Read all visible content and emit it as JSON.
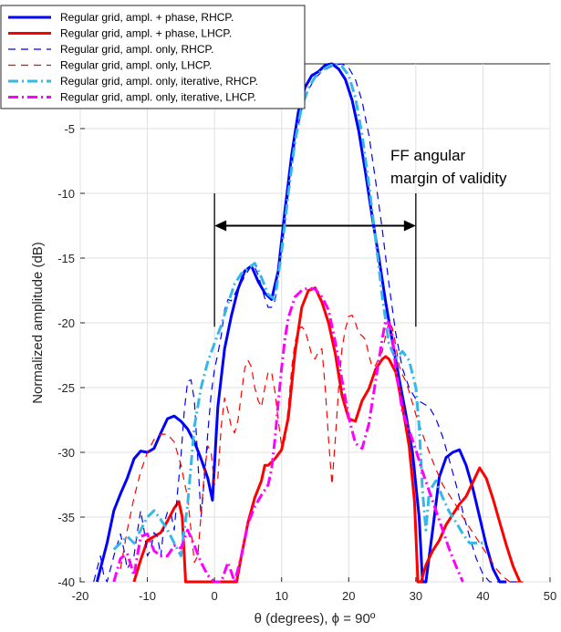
{
  "chart_data": {
    "type": "line",
    "xlabel": "θ (degrees), ϕ = 90º",
    "ylabel": "Normalized amplitude (dB)",
    "xlim": [
      -20,
      50
    ],
    "ylim": [
      -40,
      0
    ],
    "xticks": [
      -20,
      -10,
      0,
      10,
      20,
      30,
      40,
      50
    ],
    "yticks": [
      -5,
      -10,
      -15,
      -20,
      -25,
      -30,
      -35,
      -40
    ],
    "grid": true,
    "legend_position": "top-left",
    "annotation": {
      "text_line1": "FF angular",
      "text_line2": "margin of validity",
      "x_range": [
        0,
        30
      ],
      "arrow_y": -12.5,
      "bracket_y_range": [
        -10,
        -20.3
      ]
    },
    "series": [
      {
        "name": "Regular grid, ampl. + phase, RHCP.",
        "color": "#0000ff",
        "style": "solid",
        "width": 3,
        "x": [
          -17.5,
          -16,
          -15,
          -14,
          -13,
          -12,
          -11,
          -10,
          -9,
          -8,
          -7,
          -6,
          -5,
          -4,
          -3,
          -2,
          -1,
          -0.3,
          0.5,
          1.5,
          2.5,
          3.5,
          4.5,
          5.5,
          6.5,
          7.5,
          8.5,
          9.5,
          10.5,
          11.5,
          12.5,
          13.5,
          14.5,
          15.5,
          16.5,
          17.5,
          18.5,
          19.5,
          20.5,
          21.5,
          22.5,
          23.5,
          24.5,
          25.5,
          26.5,
          27.5,
          28.5,
          29.5,
          30.5,
          31,
          31.5,
          32.5,
          33.5,
          34.5,
          35.5,
          36.5,
          37.5,
          38.5,
          39.5,
          40.5,
          41.5,
          42.5,
          43,
          43.5
        ],
        "y": [
          -40,
          -37,
          -34.5,
          -33.2,
          -32,
          -30.5,
          -29.9,
          -30,
          -29.7,
          -28.5,
          -27.4,
          -27.2,
          -27.6,
          -28.2,
          -29.2,
          -30.5,
          -32,
          -33.7,
          -26.5,
          -22,
          -19.5,
          -17.4,
          -16,
          -15.6,
          -16.8,
          -17.7,
          -18.2,
          -16,
          -11.3,
          -7,
          -3.7,
          -1.8,
          -0.9,
          -0.6,
          -0.1,
          0,
          -0.4,
          -1.2,
          -2.8,
          -5.2,
          -8.4,
          -11.8,
          -15,
          -18.4,
          -21.4,
          -24.3,
          -27,
          -30,
          -35,
          -40,
          -40,
          -36,
          -31.9,
          -30.4,
          -30,
          -29.8,
          -31,
          -32.8,
          -35,
          -37.2,
          -39,
          -40,
          -40,
          -40
        ]
      },
      {
        "name": "Regular grid, ampl. + phase, LHCP.",
        "color": "#ff0000",
        "style": "solid",
        "width": 3,
        "x": [
          -12,
          -11,
          -10,
          -9,
          -8,
          -7,
          -6,
          -5.3,
          -4.8,
          -4.3,
          3.3,
          4,
          5,
          6,
          7,
          7.5,
          8,
          9,
          10,
          11,
          12,
          13,
          14,
          15,
          16,
          17,
          18,
          19,
          20,
          21,
          22,
          23,
          24,
          25,
          25.5,
          26,
          27,
          28,
          29,
          29.8,
          30.3,
          30.8,
          31.5,
          32.5,
          33.5,
          34.5,
          35.5,
          36.5,
          37.5,
          38.5,
          39.5,
          40.5,
          41.5,
          42.5,
          43.5,
          44.5,
          45.5
        ],
        "y": [
          -40,
          -38.3,
          -36.8,
          -36.5,
          -36.2,
          -35.3,
          -34.3,
          -33.8,
          -35,
          -40,
          -40,
          -38,
          -35.4,
          -33.5,
          -32.2,
          -31,
          -31,
          -30.5,
          -29.8,
          -27.3,
          -22.3,
          -18.8,
          -17.5,
          -17.3,
          -18.4,
          -20,
          -22.4,
          -25.6,
          -27.4,
          -27.6,
          -26,
          -25.1,
          -23.6,
          -22.8,
          -22.6,
          -22.8,
          -23.8,
          -26.4,
          -29.5,
          -33.8,
          -40,
          -40,
          -38.7,
          -37.6,
          -36.8,
          -35.6,
          -34.8,
          -34,
          -33.4,
          -32.3,
          -31.2,
          -32,
          -33.6,
          -35.4,
          -37.2,
          -38.8,
          -40
        ]
      },
      {
        "name": "Regular grid, ampl. only, RHCP.",
        "color": "#0000ff",
        "style": "dashed",
        "width": 1.2,
        "x": [
          -18,
          -17.5,
          -17,
          -16.5,
          -16,
          -15,
          -14,
          -13.5,
          -13,
          -12,
          -11.5,
          -11,
          -10.5,
          -10,
          -9.5,
          -9,
          -8.5,
          -8,
          -7.5,
          -7,
          -6.5,
          -6,
          -5.5,
          -5,
          -4.5,
          -4,
          -3.5,
          -3,
          -2.5,
          -2,
          -1.5,
          -1,
          -0.5,
          0,
          0.5,
          1,
          1.5,
          2,
          2.5,
          3,
          3.5,
          4,
          4.5,
          5,
          5.5,
          6,
          6.5,
          7,
          7.5,
          8,
          8.5,
          9,
          10,
          11,
          12,
          13,
          14,
          15,
          16,
          17,
          18,
          19,
          20,
          21,
          22,
          23,
          24,
          25,
          26,
          27,
          28,
          29,
          30,
          31,
          32,
          33,
          34,
          35,
          36,
          37,
          38,
          39,
          40,
          41,
          42,
          43,
          44,
          45
        ],
        "y": [
          -40,
          -39,
          -38,
          -39.5,
          -40,
          -38,
          -36.3,
          -37.5,
          -39,
          -38,
          -36.2,
          -34.5,
          -36,
          -38,
          -37.5,
          -36.2,
          -36.5,
          -38,
          -35.5,
          -34.6,
          -34.7,
          -36,
          -33,
          -30.3,
          -26.8,
          -24.5,
          -24.4,
          -26,
          -30.5,
          -35,
          -32,
          -28.5,
          -25.5,
          -23.6,
          -22.4,
          -21,
          -19,
          -18.2,
          -18.3,
          -17.8,
          -17.3,
          -16.9,
          -16.4,
          -16,
          -15.6,
          -15.7,
          -16.3,
          -17.2,
          -18.1,
          -18.8,
          -18.8,
          -18.3,
          -14.5,
          -10,
          -6,
          -3.5,
          -2,
          -1.1,
          -0.6,
          -0.3,
          -0.1,
          0,
          -0.3,
          -1.2,
          -2.9,
          -5.5,
          -9,
          -12.8,
          -17,
          -20.8,
          -23.5,
          -25,
          -25.9,
          -26.2,
          -26.5,
          -27.4,
          -28.8,
          -30.6,
          -32.5,
          -34.6,
          -36.5,
          -38.2,
          -39.4,
          -40,
          -40,
          -40,
          -40,
          -40
        ]
      },
      {
        "name": "Regular grid, ampl. only, LHCP.",
        "color": "#ff0000",
        "style": "dashed",
        "width": 1.2,
        "x": [
          -14,
          -13,
          -12,
          -11,
          -10,
          -9,
          -8,
          -7,
          -6,
          -5,
          -4,
          -3.5,
          -3,
          -2.5,
          -2,
          -1.5,
          -1,
          -0.5,
          0,
          0.5,
          1,
          1.5,
          2,
          2.5,
          3,
          3.5,
          4,
          4.5,
          5,
          5.5,
          6,
          6.5,
          7,
          7.5,
          8,
          8.5,
          9,
          9.5,
          10,
          10.5,
          11,
          11.5,
          12,
          12.5,
          13,
          13.5,
          14,
          14.5,
          15,
          15.5,
          16,
          16.5,
          17,
          17.5,
          18,
          18.5,
          19,
          19.5,
          20,
          20.5,
          21,
          21.5,
          22,
          22.5,
          23,
          23.5,
          24,
          24.5,
          25,
          25.5,
          26,
          26.5,
          27,
          27.5,
          28,
          28.5,
          29,
          29.5,
          30,
          31,
          32,
          33,
          34,
          35,
          36,
          37,
          38,
          39,
          40,
          41,
          42,
          43,
          44,
          45,
          46
        ],
        "y": [
          -39,
          -36,
          -33.5,
          -31.5,
          -30,
          -29,
          -28.6,
          -28.6,
          -29.2,
          -31,
          -33.5,
          -36,
          -38.5,
          -38,
          -34.8,
          -31.5,
          -29.5,
          -30,
          -32.5,
          -32,
          -28,
          -25.8,
          -26.8,
          -28,
          -28.5,
          -27.5,
          -25.5,
          -23.5,
          -22.9,
          -23.4,
          -25,
          -26,
          -26.5,
          -25,
          -23.8,
          -23.8,
          -25.3,
          -27.5,
          -29.5,
          -29,
          -26.5,
          -23.5,
          -21.5,
          -20.5,
          -20.3,
          -20.6,
          -21.5,
          -22.5,
          -22.8,
          -22.2,
          -22,
          -25,
          -29,
          -32.5,
          -29,
          -25,
          -22,
          -20.5,
          -19.5,
          -19.4,
          -20,
          -20.8,
          -21,
          -21.3,
          -22.5,
          -23.4,
          -23.3,
          -22.7,
          -22.2,
          -21,
          -19.9,
          -20.4,
          -21.7,
          -23.3,
          -24,
          -24.5,
          -25.3,
          -26.2,
          -27.1,
          -28.6,
          -30,
          -31.3,
          -32.5,
          -33.3,
          -34.1,
          -35,
          -35.8,
          -36.6,
          -37.4,
          -38.2,
          -39,
          -39.6,
          -40,
          -40,
          -40
        ]
      },
      {
        "name": "Regular grid, ampl. only, iterative, RHCP.",
        "color": "#36b7e8",
        "style": "dashdot",
        "width": 3,
        "x": [
          -15,
          -14,
          -13,
          -12,
          -11,
          -10,
          -9,
          -8,
          -7,
          -6,
          -5,
          -4,
          -3,
          -2,
          -1,
          0,
          1,
          2,
          3,
          4,
          5,
          6,
          7,
          8,
          9,
          10,
          11,
          12,
          13,
          14,
          15,
          16,
          17,
          18,
          19,
          20,
          21,
          22,
          23,
          24,
          25,
          26,
          27,
          28,
          29,
          30,
          30.5,
          31,
          31.5,
          32,
          33,
          34,
          35,
          36,
          37,
          38,
          39,
          40
        ],
        "y": [
          -37.5,
          -37,
          -36.5,
          -37,
          -36,
          -35,
          -34.5,
          -35.2,
          -36,
          -37,
          -38,
          -34,
          -28,
          -25,
          -23,
          -21.6,
          -20.2,
          -18.5,
          -17,
          -16.2,
          -15.8,
          -15.4,
          -16.5,
          -17.8,
          -18.2,
          -14.5,
          -10,
          -6,
          -3.3,
          -1.9,
          -1,
          -0.5,
          -0.2,
          0,
          -0.2,
          -0.9,
          -2.6,
          -5.5,
          -9.3,
          -13.5,
          -18,
          -21.6,
          -22.8,
          -22.2,
          -22.9,
          -25,
          -28,
          -33,
          -36,
          -33,
          -32.2,
          -33.5,
          -34.6,
          -35.4,
          -36.3,
          -37,
          -37,
          -37
        ]
      },
      {
        "name": "Regular grid, ampl. only, iterative, LHCP.",
        "color": "#ff00ff",
        "style": "dashdot",
        "width": 3,
        "x": [
          -15,
          -14,
          -13,
          -12,
          -11,
          -10,
          -9,
          -8,
          -7,
          -6,
          -5,
          -4,
          -3,
          -2,
          -1,
          0,
          1,
          2,
          3,
          4,
          5,
          6,
          7,
          8,
          8.5,
          9,
          9.5,
          10,
          10.5,
          11,
          12,
          13,
          14,
          15,
          16,
          17,
          18,
          19,
          20,
          21,
          22,
          23,
          24,
          25,
          25.5,
          26,
          26.5,
          27,
          28,
          29,
          30,
          31,
          32,
          33,
          34,
          35,
          36,
          37
        ],
        "y": [
          -40,
          -38.2,
          -37.8,
          -39.5,
          -36.5,
          -36.3,
          -37.6,
          -38,
          -38,
          -37.2,
          -37.4,
          -36,
          -37.2,
          -38.5,
          -39.5,
          -40,
          -40,
          -38.5,
          -40,
          -38,
          -35.5,
          -34.2,
          -33.3,
          -32.5,
          -31.3,
          -29,
          -26.2,
          -23.5,
          -21.2,
          -19.6,
          -18,
          -17.5,
          -17.3,
          -17.4,
          -18,
          -19,
          -21.5,
          -24.4,
          -27.3,
          -29.3,
          -29.7,
          -27.8,
          -24.5,
          -21.2,
          -19.8,
          -20,
          -21,
          -23.5,
          -26.8,
          -28.3,
          -29.8,
          -31.5,
          -33,
          -34.5,
          -36,
          -37.5,
          -38.8,
          -40
        ]
      }
    ]
  }
}
